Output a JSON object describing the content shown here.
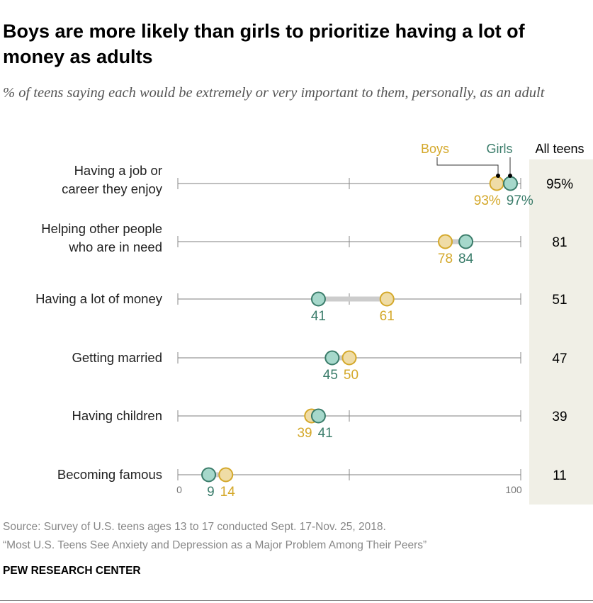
{
  "title": "Boys are more likely than girls to prioritize having a lot of money as adults",
  "subtitle": "% of teens saying each would be extremely or very important to them, personally, as an adult",
  "chart_data": {
    "type": "dot",
    "xlim": [
      0,
      100
    ],
    "x_ticks": [
      0,
      50,
      100
    ],
    "x_tick_labels": [
      "0",
      "",
      "100"
    ],
    "legend_placement": "top",
    "all_teens_header": "All teens",
    "series": [
      {
        "name": "Boys",
        "color": "#d4a82a",
        "fill": "#efdca6",
        "values": [
          93,
          78,
          61,
          50,
          39,
          14
        ]
      },
      {
        "name": "Girls",
        "color": "#3a7c6a",
        "fill": "#a6d8cb",
        "values": [
          97,
          84,
          41,
          45,
          41,
          9
        ]
      }
    ],
    "categories": [
      [
        "Having a job or",
        "career they enjoy"
      ],
      [
        "Helping other people",
        "who are in need"
      ],
      [
        "Having a lot of money"
      ],
      [
        "Getting married"
      ],
      [
        "Having children"
      ],
      [
        "Becoming famous"
      ]
    ],
    "all_teens": [
      95,
      81,
      51,
      47,
      39,
      11
    ],
    "first_row_percent_suffix": "%",
    "panel_color": "#f0efe6"
  },
  "footer": {
    "source": "Source: Survey of U.S. teens ages 13 to 17 conducted Sept. 17-Nov. 25, 2018.",
    "report": "“Most U.S. Teens See Anxiety and Depression as a Major Problem Among Their Peers”",
    "org": "PEW RESEARCH CENTER"
  }
}
